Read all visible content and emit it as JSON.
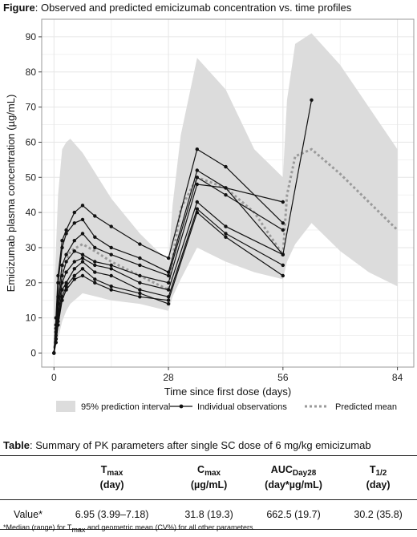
{
  "figure": {
    "label": "Figure",
    "title": ": Observed and predicted emicizumab concentration vs. time profiles"
  },
  "chart_data": {
    "type": "line",
    "title": "Observed and predicted emicizumab concentration vs. time profiles",
    "xlabel": "Time since first dose (days)",
    "ylabel": "Emicizumab plasma concentration (µg/mL)",
    "xlim": [
      -3,
      88
    ],
    "ylim": [
      -4,
      95
    ],
    "xticks": [
      0,
      28,
      56,
      84
    ],
    "yticks": [
      0,
      10,
      20,
      30,
      40,
      50,
      60,
      70,
      80,
      90
    ],
    "grid": true,
    "legend_position": "bottom",
    "legend": {
      "band": "95% prediction interval",
      "observed": "Individual observations",
      "mean": "Predicted mean"
    },
    "prediction_interval": {
      "x": [
        0,
        1,
        2,
        3,
        4,
        7,
        14,
        21,
        28,
        29,
        31,
        35,
        42,
        49,
        56,
        57,
        59,
        63,
        70,
        77,
        84
      ],
      "upper": [
        15,
        45,
        58,
        60,
        61,
        57,
        44,
        34,
        26,
        42,
        62,
        84,
        75,
        58,
        50,
        72,
        88,
        91,
        82,
        70,
        58
      ],
      "lower": [
        0,
        4,
        9,
        12,
        14,
        17,
        15,
        14,
        12,
        16,
        21,
        30,
        26,
        23,
        21,
        26,
        31,
        37,
        29,
        23,
        19
      ]
    },
    "predicted_mean": {
      "x": [
        0,
        1,
        2,
        4,
        7,
        10,
        14,
        21,
        28,
        29,
        31,
        35,
        42,
        49,
        56,
        57,
        59,
        63,
        70,
        77,
        84
      ],
      "y": [
        0,
        14,
        23,
        29,
        31,
        29,
        26,
        22,
        18,
        27,
        41,
        50,
        47,
        40,
        28,
        45,
        56,
        58,
        51,
        43,
        35
      ]
    },
    "series": [
      {
        "x": [
          0,
          0.5,
          1,
          2,
          3,
          5,
          7,
          10,
          14,
          21,
          28,
          35,
          42,
          56
        ],
        "y": [
          0,
          10,
          22,
          32,
          35,
          40,
          42,
          39,
          36,
          31,
          27,
          58,
          53,
          37
        ]
      },
      {
        "x": [
          0,
          0.5,
          1,
          2,
          3,
          5,
          7,
          10,
          14,
          21,
          28,
          35,
          42,
          56
        ],
        "y": [
          0,
          8,
          20,
          30,
          34,
          37,
          38,
          33,
          30,
          27,
          23,
          52,
          47,
          43
        ]
      },
      {
        "x": [
          0,
          0.5,
          1,
          2,
          3,
          5,
          7,
          10,
          14,
          21,
          28,
          35,
          42,
          56
        ],
        "y": [
          0,
          7,
          16,
          25,
          28,
          32,
          34,
          30,
          28,
          25,
          22,
          50,
          45,
          35
        ]
      },
      {
        "x": [
          0,
          0.5,
          1,
          2,
          3,
          5,
          7,
          10,
          14,
          21,
          28,
          35,
          42,
          56,
          63
        ],
        "y": [
          0,
          6,
          14,
          22,
          26,
          29,
          28,
          26,
          25,
          22,
          20,
          48,
          47,
          28,
          72
        ]
      },
      {
        "x": [
          0,
          0.5,
          1,
          2,
          3,
          5,
          7,
          10,
          14,
          21,
          28,
          35,
          42,
          56
        ],
        "y": [
          0,
          5,
          12,
          20,
          23,
          26,
          27,
          25,
          24,
          20,
          18,
          43,
          36,
          28
        ]
      },
      {
        "x": [
          0,
          0.5,
          1,
          2,
          3,
          5,
          7,
          10,
          14,
          21,
          28,
          35,
          42,
          56
        ],
        "y": [
          0,
          4,
          10,
          18,
          20,
          24,
          26,
          23,
          22,
          18,
          16,
          41,
          34,
          25
        ]
      },
      {
        "x": [
          0,
          0.5,
          1,
          2,
          3,
          5,
          7,
          10,
          14,
          21,
          28,
          35,
          42,
          56
        ],
        "y": [
          0,
          3,
          8,
          15,
          18,
          21,
          22,
          20,
          18,
          16,
          15,
          40,
          33,
          22
        ]
      },
      {
        "x": [
          0,
          0.5,
          1,
          2,
          3,
          5,
          7,
          10,
          14,
          21,
          28
        ],
        "y": [
          0,
          4,
          9,
          16,
          19,
          22,
          24,
          21,
          19,
          17,
          14
        ]
      }
    ],
    "colors": {
      "band": "#dcdcdc",
      "observed": "#111111",
      "mean": "#9a9a9a",
      "grid": "#e6e6e6",
      "panel_border": "#9a9a9a"
    }
  },
  "table": {
    "label": "Table",
    "title": ": Summary of PK parameters after single SC dose of 6 mg/kg emicizumab",
    "headers": [
      {
        "main": "T",
        "sub": "max",
        "unit": "(day)"
      },
      {
        "main": "C",
        "sub": "max",
        "unit": "(µg/mL)"
      },
      {
        "main": "AUC",
        "sub": "Day28",
        "unit": "(day*µg/mL)"
      },
      {
        "main": "T",
        "sub": "1/2",
        "unit": "(day)"
      }
    ],
    "row_label": "Value*",
    "values": [
      "6.95 (3.99–7.18)",
      "31.8 (19.3)",
      "662.5 (19.7)",
      "30.2 (35.8)"
    ]
  },
  "footnote": {
    "a": "*Median (range) for T",
    "sub": "max",
    "b": " and geometric mean (CV%) for all other parameters."
  }
}
